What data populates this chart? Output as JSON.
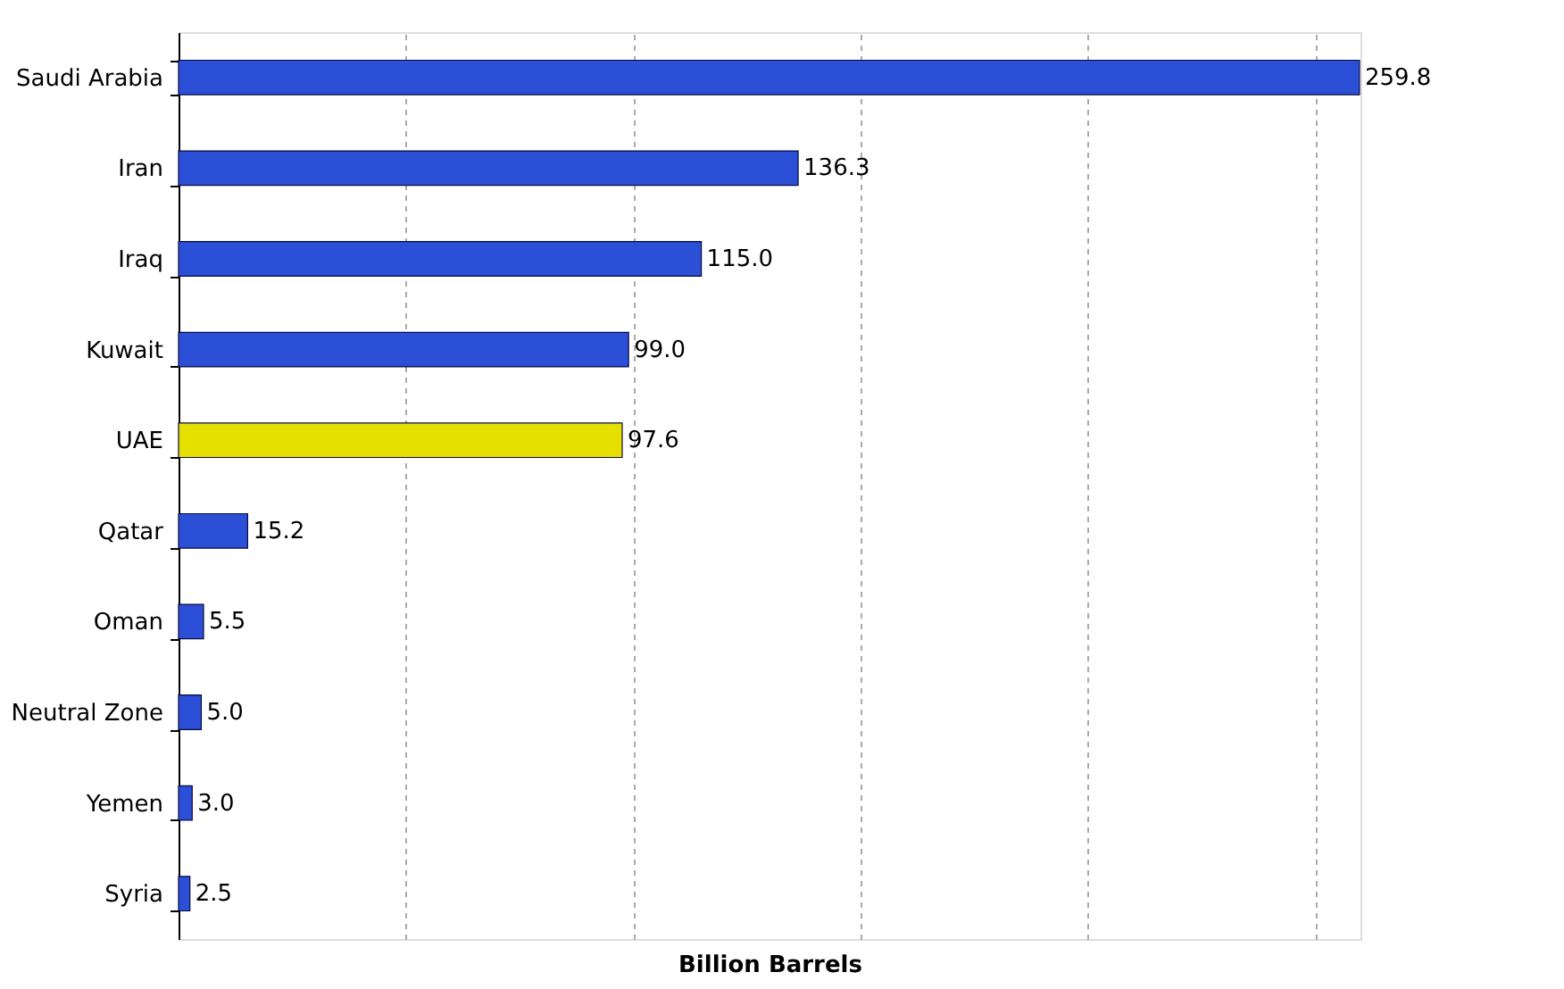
{
  "chart_data": {
    "type": "bar",
    "orientation": "horizontal",
    "xlabel": "Billion Barrels",
    "categories": [
      "Saudi Arabia",
      "Iran",
      "Iraq",
      "Kuwait",
      "UAE",
      "Qatar",
      "Oman",
      "Neutral Zone",
      "Yemen",
      "Syria"
    ],
    "values": [
      259.8,
      136.3,
      115.0,
      99.0,
      97.6,
      15.2,
      5.5,
      5.0,
      3.0,
      2.5
    ],
    "value_labels": [
      "259.8",
      "136.3",
      "115.0",
      "99.0",
      "97.6",
      "15.2",
      "5.5",
      "5.0",
      "3.0",
      "2.5"
    ],
    "colors": [
      "#2b4fd6",
      "#2b4fd6",
      "#2b4fd6",
      "#2b4fd6",
      "#e6e000",
      "#2b4fd6",
      "#2b4fd6",
      "#2b4fd6",
      "#2b4fd6",
      "#2b4fd6"
    ],
    "xlim": [
      0,
      260
    ],
    "xticks": [
      {
        "value": 0,
        "label": null
      },
      {
        "value": 50,
        "label": null
      },
      {
        "value": 100,
        "label": null
      },
      {
        "value": 150,
        "label": null
      },
      {
        "value": 200,
        "label": null
      },
      {
        "value": 250,
        "label": null
      }
    ],
    "grid": "x",
    "tick_labels": "y"
  }
}
